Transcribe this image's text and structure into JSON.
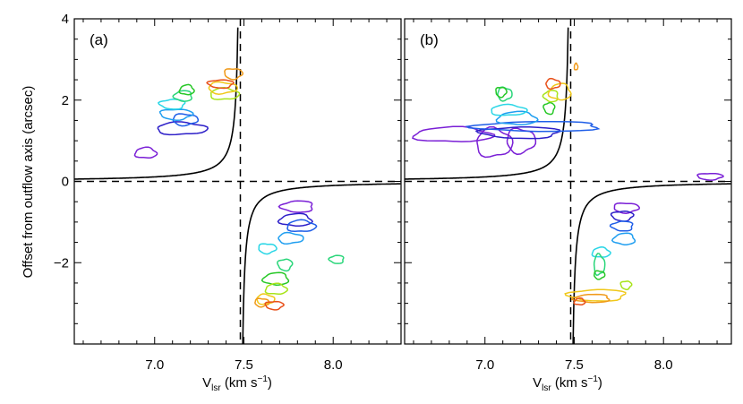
{
  "chart_data": {
    "type": "contour",
    "ylabel": "Offset from outflow axis (arcsec)",
    "xlabel": "V",
    "xlabel_sub": "lsr",
    "xlabel_units": "(km s",
    "xlabel_exp": "−1",
    "xlabel_close": ")",
    "xlim": [
      6.55,
      8.38
    ],
    "ylim": [
      -4.0,
      4.0
    ],
    "x_ticks": [
      7.0,
      7.5,
      8.0
    ],
    "x_tick_labels": [
      "7.0",
      "7.5",
      "8.0"
    ],
    "y_ticks": [
      -2,
      0,
      2,
      4
    ],
    "y_tick_labels": [
      "−2",
      "0",
      "2",
      "4"
    ],
    "reference_lines": {
      "v_sys": 7.48,
      "offset_zero": 0.0
    },
    "model_curve": {
      "form": "hyperbola",
      "x0": 7.48,
      "k": 0.053
    },
    "panels": [
      {
        "label": "(a)",
        "contours": [
          {
            "cx": 6.95,
            "cy": 0.7,
            "rx": 0.06,
            "ry": 0.13,
            "color": "#7a1fd6"
          },
          {
            "cx": 7.15,
            "cy": 1.3,
            "rx": 0.14,
            "ry": 0.15,
            "color": "#2d1fc8"
          },
          {
            "cx": 7.17,
            "cy": 1.52,
            "rx": 0.07,
            "ry": 0.14,
            "color": "#1f5ee8"
          },
          {
            "cx": 7.12,
            "cy": 1.65,
            "rx": 0.09,
            "ry": 0.13,
            "color": "#1f9ef0"
          },
          {
            "cx": 7.1,
            "cy": 1.9,
            "rx": 0.07,
            "ry": 0.12,
            "color": "#2ad6e6"
          },
          {
            "cx": 7.16,
            "cy": 2.1,
            "rx": 0.05,
            "ry": 0.13,
            "color": "#2ad67a"
          },
          {
            "cx": 7.18,
            "cy": 2.25,
            "rx": 0.04,
            "ry": 0.12,
            "color": "#28c828"
          },
          {
            "cx": 7.39,
            "cy": 2.15,
            "rx": 0.08,
            "ry": 0.14,
            "color": "#a8e41a"
          },
          {
            "cx": 7.38,
            "cy": 2.3,
            "rx": 0.08,
            "ry": 0.14,
            "color": "#f0c81a"
          },
          {
            "cx": 7.44,
            "cy": 2.65,
            "rx": 0.05,
            "ry": 0.13,
            "color": "#f09a1a"
          },
          {
            "cx": 7.37,
            "cy": 2.4,
            "rx": 0.07,
            "ry": 0.1,
            "color": "#e8501a"
          },
          {
            "cx": 7.8,
            "cy": -0.62,
            "rx": 0.09,
            "ry": 0.14,
            "color": "#7a1fd6"
          },
          {
            "cx": 7.79,
            "cy": -0.95,
            "rx": 0.09,
            "ry": 0.15,
            "color": "#2d1fc8"
          },
          {
            "cx": 7.82,
            "cy": -1.1,
            "rx": 0.08,
            "ry": 0.14,
            "color": "#1f5ee8"
          },
          {
            "cx": 7.76,
            "cy": -1.4,
            "rx": 0.07,
            "ry": 0.13,
            "color": "#1f9ef0"
          },
          {
            "cx": 7.63,
            "cy": -1.65,
            "rx": 0.05,
            "ry": 0.12,
            "color": "#2ad6e6"
          },
          {
            "cx": 7.73,
            "cy": -2.05,
            "rx": 0.04,
            "ry": 0.14,
            "color": "#2ad67a"
          },
          {
            "cx": 8.02,
            "cy": -1.92,
            "rx": 0.04,
            "ry": 0.1,
            "color": "#2ad67a"
          },
          {
            "cx": 7.68,
            "cy": -2.4,
            "rx": 0.07,
            "ry": 0.15,
            "color": "#28c828"
          },
          {
            "cx": 7.68,
            "cy": -2.65,
            "rx": 0.06,
            "ry": 0.13,
            "color": "#a8e41a"
          },
          {
            "cx": 7.62,
            "cy": -2.9,
            "rx": 0.05,
            "ry": 0.12,
            "color": "#f0c81a"
          },
          {
            "cx": 7.6,
            "cy": -2.98,
            "rx": 0.04,
            "ry": 0.1,
            "color": "#f09a1a"
          },
          {
            "cx": 7.67,
            "cy": -3.05,
            "rx": 0.05,
            "ry": 0.1,
            "color": "#e8501a"
          }
        ]
      },
      {
        "label": "(b)",
        "contours": [
          {
            "cx": 6.82,
            "cy": 1.15,
            "rx": 0.22,
            "ry": 0.18,
            "color": "#7a1fd6"
          },
          {
            "cx": 7.05,
            "cy": 0.95,
            "rx": 0.1,
            "ry": 0.35,
            "color": "#7a1fd6"
          },
          {
            "cx": 7.2,
            "cy": 1.0,
            "rx": 0.08,
            "ry": 0.3,
            "color": "#7a1fd6"
          },
          {
            "cx": 8.26,
            "cy": 0.12,
            "rx": 0.07,
            "ry": 0.08,
            "color": "#7a1fd6"
          },
          {
            "cx": 7.2,
            "cy": 1.2,
            "rx": 0.22,
            "ry": 0.14,
            "color": "#2d1fc8"
          },
          {
            "cx": 7.3,
            "cy": 1.35,
            "rx": 0.35,
            "ry": 0.12,
            "color": "#1f5ee8"
          },
          {
            "cx": 7.18,
            "cy": 1.55,
            "rx": 0.11,
            "ry": 0.16,
            "color": "#1f9ef0"
          },
          {
            "cx": 7.13,
            "cy": 1.75,
            "rx": 0.1,
            "ry": 0.13,
            "color": "#2ad6e6"
          },
          {
            "cx": 7.11,
            "cy": 2.15,
            "rx": 0.04,
            "ry": 0.16,
            "color": "#2ad67a"
          },
          {
            "cx": 7.09,
            "cy": 2.2,
            "rx": 0.03,
            "ry": 0.12,
            "color": "#28c828"
          },
          {
            "cx": 7.36,
            "cy": 1.8,
            "rx": 0.03,
            "ry": 0.14,
            "color": "#28c828"
          },
          {
            "cx": 7.37,
            "cy": 2.1,
            "rx": 0.04,
            "ry": 0.14,
            "color": "#a8e41a"
          },
          {
            "cx": 7.42,
            "cy": 2.2,
            "rx": 0.06,
            "ry": 0.2,
            "color": "#f0c81a"
          },
          {
            "cx": 7.51,
            "cy": 2.82,
            "rx": 0.01,
            "ry": 0.08,
            "color": "#f09a1a"
          },
          {
            "cx": 7.38,
            "cy": 2.4,
            "rx": 0.04,
            "ry": 0.12,
            "color": "#e8501a"
          },
          {
            "cx": 7.79,
            "cy": -0.65,
            "rx": 0.07,
            "ry": 0.12,
            "color": "#7a1fd6"
          },
          {
            "cx": 7.77,
            "cy": -0.85,
            "rx": 0.06,
            "ry": 0.12,
            "color": "#2d1fc8"
          },
          {
            "cx": 7.77,
            "cy": -1.1,
            "rx": 0.06,
            "ry": 0.12,
            "color": "#1f5ee8"
          },
          {
            "cx": 7.78,
            "cy": -1.42,
            "rx": 0.06,
            "ry": 0.14,
            "color": "#1f9ef0"
          },
          {
            "cx": 7.65,
            "cy": -1.75,
            "rx": 0.05,
            "ry": 0.12,
            "color": "#2ad6e6"
          },
          {
            "cx": 7.64,
            "cy": -2.05,
            "rx": 0.03,
            "ry": 0.25,
            "color": "#2ad67a"
          },
          {
            "cx": 7.64,
            "cy": -2.3,
            "rx": 0.03,
            "ry": 0.1,
            "color": "#28c828"
          },
          {
            "cx": 7.79,
            "cy": -2.55,
            "rx": 0.03,
            "ry": 0.1,
            "color": "#a8e41a"
          },
          {
            "cx": 7.63,
            "cy": -2.8,
            "rx": 0.16,
            "ry": 0.14,
            "color": "#f0c81a"
          },
          {
            "cx": 7.6,
            "cy": -2.88,
            "rx": 0.1,
            "ry": 0.1,
            "color": "#f09a1a"
          },
          {
            "cx": 7.53,
            "cy": -2.96,
            "rx": 0.03,
            "ry": 0.08,
            "color": "#e8501a"
          }
        ]
      }
    ]
  }
}
